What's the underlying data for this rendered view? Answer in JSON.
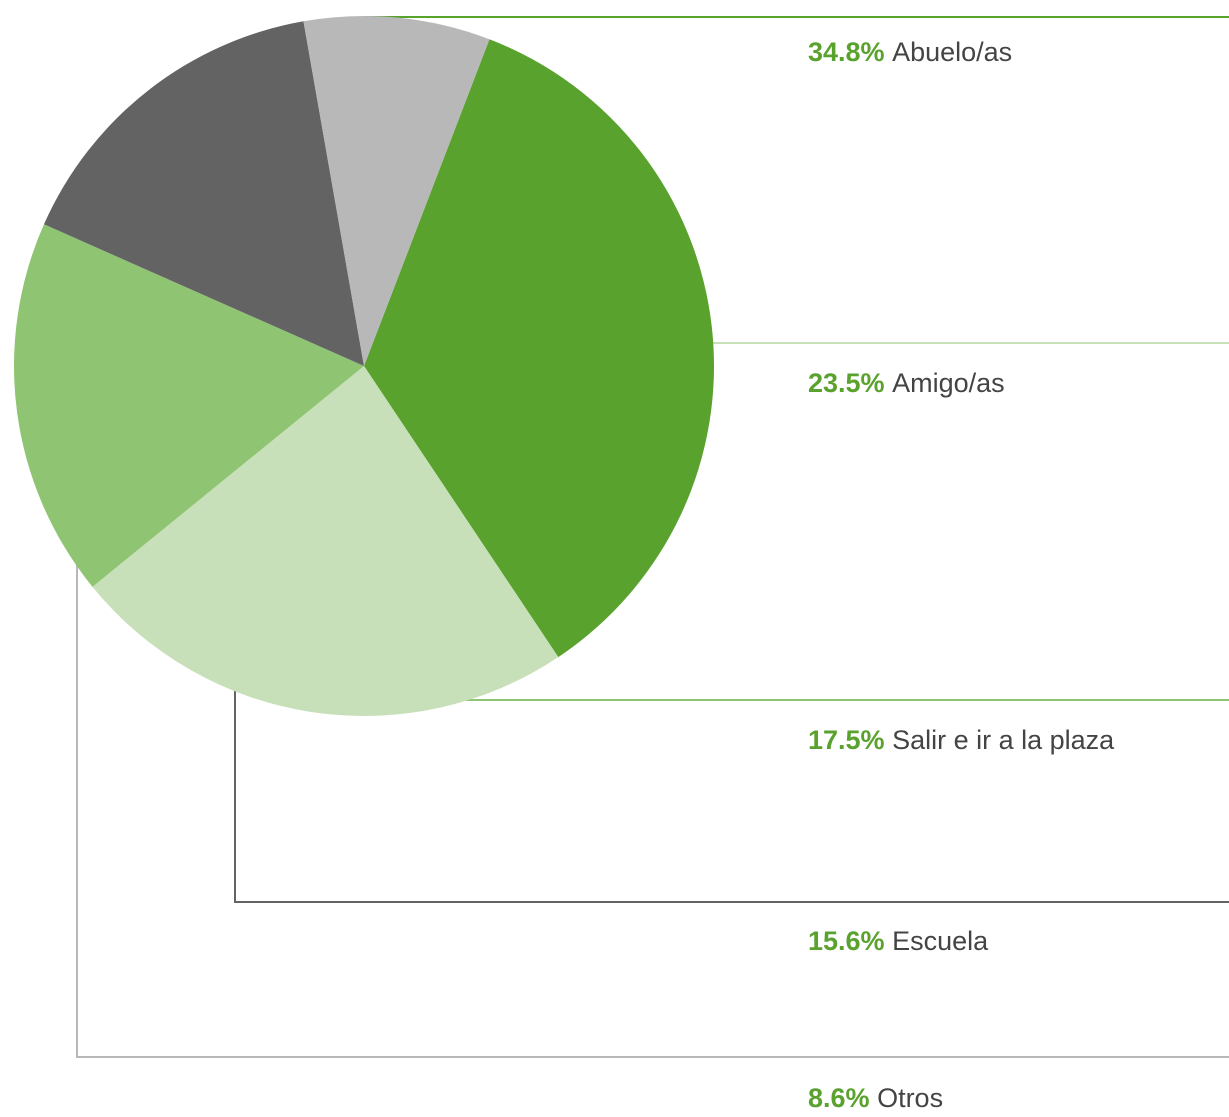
{
  "chart_data": {
    "type": "pie",
    "categories": [
      "Abuelo/as",
      "Amigo/as",
      "Salir e ir a la plaza",
      "Escuela",
      "Otros"
    ],
    "values": [
      34.8,
      23.5,
      17.5,
      15.6,
      8.6
    ],
    "value_labels": [
      "34.8%",
      "23.5%",
      "17.5%",
      "15.6%",
      "8.6%"
    ],
    "colors": [
      "#5aa22e",
      "#c8e0b9",
      "#8fc472",
      "#636363",
      "#b8b8b8"
    ],
    "label_color": "#5aa22e"
  }
}
